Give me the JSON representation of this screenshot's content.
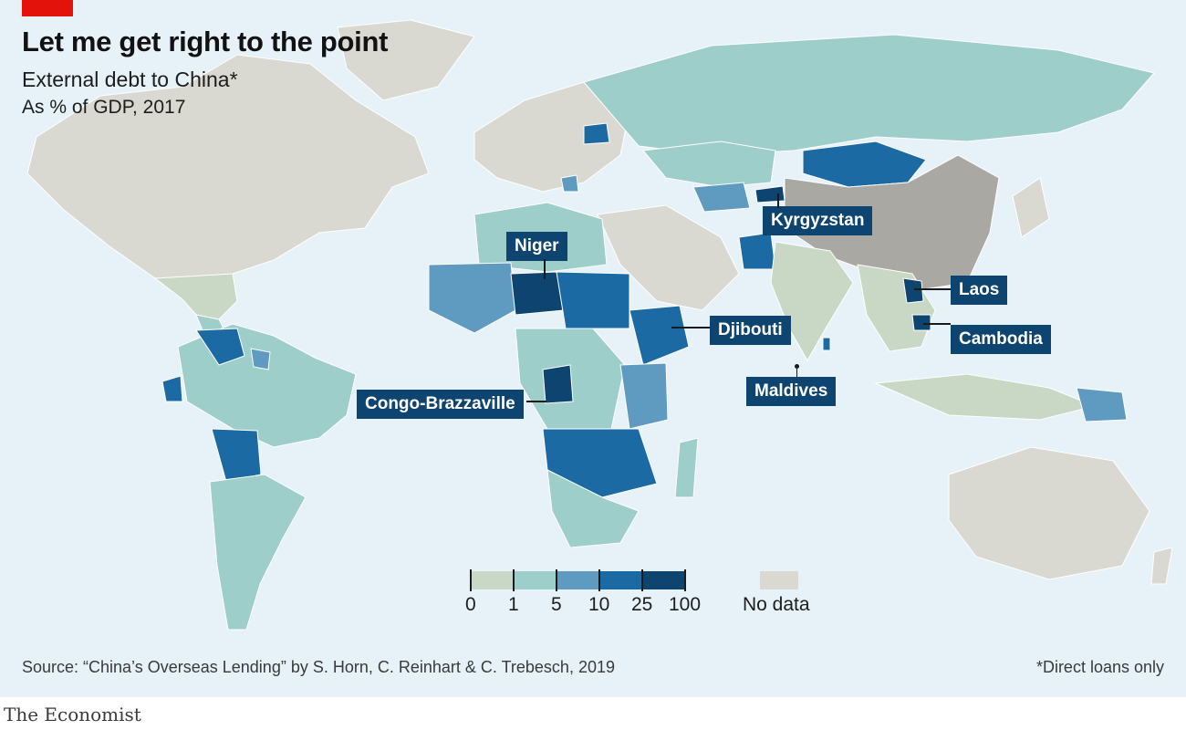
{
  "header": {
    "title": "Let me get right to the point",
    "subtitle": "External debt to China*",
    "unit": "As % of GDP, 2017"
  },
  "colors": {
    "ocean": "#e6f1f8",
    "nodata": "#dad9d1",
    "china": "#a9a8a3",
    "band_0_1": "#c9d7c5",
    "band_1_5": "#9ecec9",
    "band_5_10": "#5f9bc0",
    "band_10_25": "#1b6aa3",
    "band_25_100": "#0d4470",
    "accent_red": "#e3120b"
  },
  "legend": {
    "ticks": [
      "0",
      "1",
      "5",
      "10",
      "25",
      "100"
    ],
    "nodata_label": "No data"
  },
  "callouts": [
    {
      "id": "niger",
      "label": "Niger"
    },
    {
      "id": "kyrgyzstan",
      "label": "Kyrgyzstan"
    },
    {
      "id": "laos",
      "label": "Laos"
    },
    {
      "id": "djibouti",
      "label": "Djibouti"
    },
    {
      "id": "cambodia",
      "label": "Cambodia"
    },
    {
      "id": "congo",
      "label": "Congo-Brazzaville"
    },
    {
      "id": "maldives",
      "label": "Maldives"
    }
  ],
  "footer": {
    "source": "Source: “China’s Overseas Lending” by S. Horn, C. Reinhart & C. Trebesch, 2019",
    "footnote": "*Direct loans only",
    "brand": "The Economist"
  }
}
